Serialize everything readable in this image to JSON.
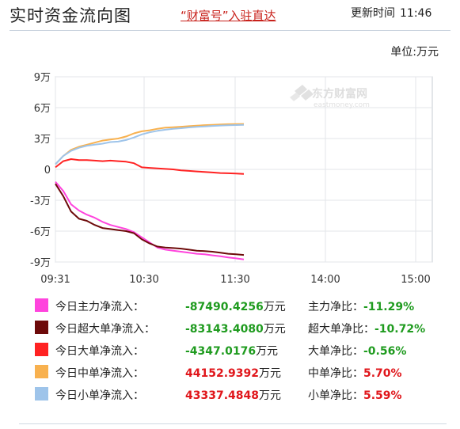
{
  "header": {
    "title": "实时资金流向图",
    "link": "“财富号”入驻直达",
    "update_label": "更新时间",
    "update_time": "11:46"
  },
  "unit_label": "单位:万元",
  "watermark": {
    "cn": "东方财富网",
    "en": "eastmoney.com"
  },
  "chart_data": {
    "type": "line",
    "x_ticks": [
      "09:31",
      "10:30",
      "11:30",
      "14:00",
      "15:00"
    ],
    "y_ticks": [
      "9万",
      "6万",
      "3万",
      "0",
      "-3万",
      "-6万",
      "-9万"
    ],
    "ylim": [
      -90000,
      90000
    ],
    "grid": true,
    "x": [
      0,
      5,
      10,
      15,
      20,
      25,
      30,
      35,
      40,
      45,
      50,
      55,
      60,
      65,
      70,
      75,
      80,
      85,
      90,
      95,
      100,
      105,
      110,
      115,
      120
    ],
    "series": [
      {
        "name": "今日主力净流入",
        "color": "#ff44dd",
        "values": [
          -12000,
          -21000,
          -34000,
          -40000,
          -44000,
          -47000,
          -51000,
          -54000,
          -56000,
          -58000,
          -61000,
          -66000,
          -71000,
          -76000,
          -78000,
          -79000,
          -80000,
          -81000,
          -82000,
          -82500,
          -83500,
          -84500,
          -85500,
          -86500,
          -87490
        ]
      },
      {
        "name": "今日超大单净流入",
        "color": "#6d0a0a",
        "values": [
          -14000,
          -26000,
          -41000,
          -48000,
          -50000,
          -54000,
          -57000,
          -58000,
          -59000,
          -60000,
          -62000,
          -68000,
          -72000,
          -75000,
          -76000,
          -76500,
          -77000,
          -78000,
          -79000,
          -79500,
          -80000,
          -81000,
          -82000,
          -82500,
          -83143
        ]
      },
      {
        "name": "今日大单净流入",
        "color": "#ff2222",
        "values": [
          2000,
          8000,
          10000,
          9000,
          9000,
          8500,
          8000,
          8500,
          8000,
          7500,
          6000,
          2000,
          1500,
          1000,
          500,
          0,
          -1000,
          -1500,
          -2000,
          -2500,
          -3000,
          -3500,
          -3800,
          -4100,
          -4347
        ]
      },
      {
        "name": "今日中单净流入",
        "color": "#f8b14f",
        "values": [
          5000,
          13000,
          19000,
          22000,
          24000,
          26000,
          28000,
          29000,
          30000,
          32000,
          35000,
          37000,
          38000,
          39500,
          40500,
          41000,
          41500,
          42000,
          42500,
          43000,
          43300,
          43600,
          43900,
          44050,
          44153
        ]
      },
      {
        "name": "今日小单净流入",
        "color": "#9ec4ea",
        "values": [
          5000,
          13000,
          18000,
          21000,
          23000,
          24000,
          25000,
          26500,
          27000,
          28500,
          31000,
          34000,
          36000,
          37500,
          38500,
          39500,
          40000,
          40800,
          41300,
          41800,
          42200,
          42600,
          42900,
          43100,
          43337
        ]
      }
    ]
  },
  "legend": {
    "rows": [
      {
        "label": "今日主力净流入：",
        "value": "-87490.4256",
        "unit": "万元",
        "ratio_label": "主力净比：",
        "ratio": "-11.29%",
        "color": "#ff44dd",
        "sign": "neg"
      },
      {
        "label": "今日超大单净流入：",
        "value": "-83143.4080",
        "unit": "万元",
        "ratio_label": "超大单净比：",
        "ratio": "-10.72%",
        "color": "#6d0a0a",
        "sign": "neg"
      },
      {
        "label": "今日大单净流入：",
        "value": "-4347.0176",
        "unit": "万元",
        "ratio_label": "大单净比：",
        "ratio": "-0.56%",
        "color": "#ff2222",
        "sign": "neg"
      },
      {
        "label": "今日中单净流入：",
        "value": "44152.9392",
        "unit": "万元",
        "ratio_label": "中单净比：",
        "ratio": "5.70%",
        "color": "#f8b14f",
        "sign": "pos"
      },
      {
        "label": "今日小单净流入：",
        "value": "43337.4848",
        "unit": "万元",
        "ratio_label": "小单净比：",
        "ratio": "5.59%",
        "color": "#9ec4ea",
        "sign": "pos"
      }
    ]
  }
}
